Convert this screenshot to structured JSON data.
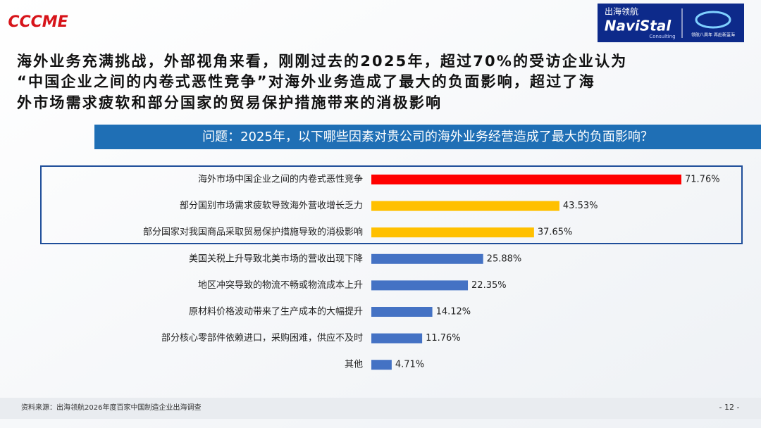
{
  "header": {
    "logo_left": "CCCME",
    "logo_right_cn": "出海领航",
    "logo_right_en": "NaviStal",
    "logo_right_sub": "Consulting",
    "logo_right_slogan": "领航八周年 再赴新蓝海"
  },
  "headline": {
    "lines": [
      "海外业务充满挑战，外部视角来看，刚刚过去的2025年，超过70%的受访企业认为",
      "“中国企业之间的内卷式恶性竞争”对海外业务造成了最大的负面影响，超过了海",
      "外市场需求疲软和部分国家的贸易保护措施带来的消极影响"
    ]
  },
  "chart_data": {
    "type": "hbar",
    "title": "问题：2025年，以下哪些因素对贵公司的海外业务经营造成了最大的负面影响？",
    "categories": [
      "海外市场中国企业之间的内卷式恶性竞争",
      "部分国别市场需求疲软导致海外营收增长乏力",
      "部分国家对我国商品采取贸易保护措施导致的消极影响",
      "美国关税上升导致北美市场的营收出现下降",
      "地区冲突导致的物流不畅或物流成本上升",
      "原材料价格波动带来了生产成本的大幅提升",
      "部分核心零部件依赖进口，采购困难，供应不及时",
      "其他"
    ],
    "values": [
      71.76,
      43.53,
      37.65,
      25.88,
      22.35,
      14.12,
      11.76,
      4.71
    ],
    "value_labels": [
      "71.76%",
      "43.53%",
      "37.65%",
      "25.88%",
      "22.35%",
      "14.12%",
      "11.76%",
      "4.71%"
    ],
    "colors": [
      "#ff0000",
      "#ffc000",
      "#ffc000",
      "#4472c4",
      "#4472c4",
      "#4472c4",
      "#4472c4",
      "#4472c4"
    ]
  },
  "footer": {
    "source": "资料来源：出海领航2026年度百家中国制造企业出海调查",
    "page": "- 12 -"
  }
}
